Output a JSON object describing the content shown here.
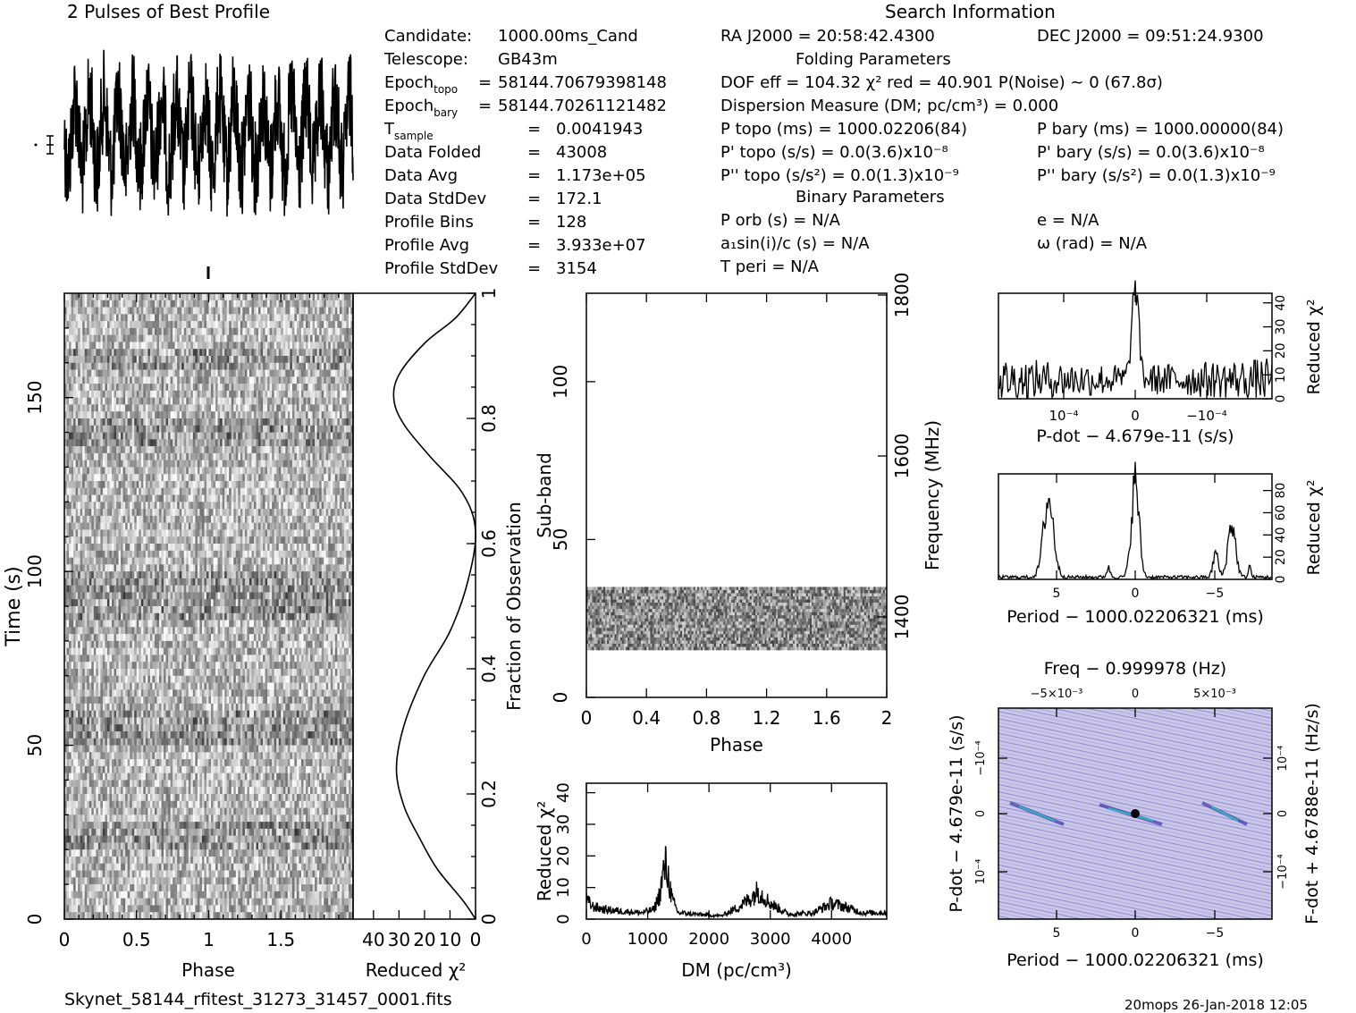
{
  "titles": {
    "profile_title": "2 Pulses of Best Profile",
    "search_info": "Search Information",
    "folding_params": "Folding Parameters",
    "binary_params": "Binary Parameters",
    "filename": "Skynet_58144_rfitest_31273_31457_0001.fits",
    "footer": "20mops 26-Jan-2018 12:05"
  },
  "info_left": [
    {
      "label": "Candidate:",
      "sep": "",
      "value": "1000.00ms_Cand"
    },
    {
      "label": "Telescope:",
      "sep": "",
      "value": "GB43m"
    },
    {
      "label": "Epoch",
      "sub": "topo",
      "sep": "=",
      "value": "58144.70679398148"
    },
    {
      "label": "Epoch",
      "sub": "bary",
      "sep": "=",
      "value": "58144.70261121482"
    },
    {
      "label": "T",
      "sub": "sample",
      "sep": "=",
      "value": "0.0041943"
    },
    {
      "label": "Data Folded",
      "sep": "=",
      "value": "43008"
    },
    {
      "label": "Data Avg",
      "sep": "=",
      "value": "1.173e+05"
    },
    {
      "label": "Data StdDev",
      "sep": "=",
      "value": "172.1"
    },
    {
      "label": "Profile Bins",
      "sep": "=",
      "value": "128"
    },
    {
      "label": "Profile Avg",
      "sep": "=",
      "value": "3.933e+07"
    },
    {
      "label": "Profile StdDev",
      "sep": "=",
      "value": "3154"
    }
  ],
  "info_mid": {
    "ra": "RA J2000 = 20:58:42.4300",
    "dof": "DOF eff = 104.32  χ² red = 40.901  P(Noise) ~ 0   (67.8σ)",
    "dm": "Dispersion Measure (DM; pc/cm³) = 0.000",
    "ptopo": "P topo (ms) =  1000.02206(84)",
    "pdtopo": "P' topo (s/s) = 0.0(3.6)x10⁻⁸",
    "pddtopo": "P'' topo (s/s²) = 0.0(1.3)x10⁻⁹",
    "porb": "P orb (s) = N/A",
    "asini": "a₁sin(i)/c (s) = N/A",
    "tperi": "T peri = N/A"
  },
  "info_right": {
    "dec": "DEC J2000 = 09:51:24.9300",
    "pbary": "P bary (ms) =  1000.00000(84)",
    "pdbary": "P' bary (s/s) = 0.0(3.6)x10⁻⁸",
    "pddbary": "P'' bary (s/s²) = 0.0(1.3)x10⁻⁹",
    "e": "e = N/A",
    "omega": "ω (rad) = N/A"
  },
  "chart_data": [
    {
      "id": "profile",
      "type": "line",
      "title": "2 Pulses of Best Profile",
      "description_series": "noisy pulse profile over 2 phase cycles",
      "ylim_labels": []
    },
    {
      "id": "time_phase",
      "type": "heatmap",
      "xlabel": "Phase",
      "ylabel": "Time (s)",
      "xticks": [
        "0",
        "0.5",
        "1",
        "1.5"
      ],
      "yticks": [
        "0",
        "50",
        "100",
        "150"
      ],
      "xlim": [
        0,
        2
      ],
      "ylim": [
        0,
        180
      ]
    },
    {
      "id": "time_chi2",
      "type": "line",
      "xlabel": "Reduced χ²",
      "ylabel": "Fraction of Observation",
      "xticks": [
        "40",
        "30",
        "20",
        "10",
        "0"
      ],
      "yticks": [
        "0",
        "0.2",
        "0.4",
        "0.6",
        "0.8",
        "1"
      ],
      "x": [
        0,
        5,
        15,
        22,
        28,
        31,
        28,
        20,
        10,
        3,
        0,
        5,
        18,
        28,
        32,
        30,
        20,
        8,
        0
      ],
      "y": [
        0,
        0.03,
        0.08,
        0.13,
        0.18,
        0.24,
        0.31,
        0.39,
        0.46,
        0.54,
        0.62,
        0.68,
        0.74,
        0.79,
        0.83,
        0.87,
        0.92,
        0.96,
        1.0
      ]
    },
    {
      "id": "subband_phase",
      "type": "heatmap",
      "xlabel": "Phase",
      "ylabel": "Sub-band",
      "y2label": "Frequency (MHz)",
      "xticks": [
        "0",
        "0.4",
        "0.8",
        "1.2",
        "1.6",
        "2"
      ],
      "yticks": [
        "0",
        "50",
        "100"
      ],
      "y2ticks": [
        "1400",
        "1600",
        "1800"
      ],
      "xlim": [
        0,
        2
      ],
      "ylim": [
        0,
        128
      ],
      "filled_band": [
        15,
        35
      ]
    },
    {
      "id": "dm_chi2",
      "type": "line",
      "xlabel": "DM (pc/cm³)",
      "ylabel": "Reduced χ²",
      "xticks": [
        "0",
        "1000",
        "2000",
        "3000",
        "4000"
      ],
      "yticks": [
        "0",
        "10",
        "20",
        "30",
        "40"
      ],
      "xlim": [
        0,
        4900
      ],
      "ylim": [
        0,
        43
      ],
      "x": [
        0,
        100,
        300,
        600,
        900,
        1100,
        1200,
        1250,
        1300,
        1350,
        1400,
        1500,
        1800,
        2200,
        2500,
        2700,
        2800,
        3000,
        3300,
        3700,
        4000,
        4200,
        4500,
        4900
      ],
      "y": [
        6,
        4,
        3,
        2.5,
        2,
        3,
        8,
        14,
        17,
        12,
        6,
        2,
        1.5,
        1,
        4,
        7,
        9,
        5,
        1.5,
        2,
        5,
        4,
        2,
        2
      ]
    },
    {
      "id": "pdot_chi2",
      "type": "line",
      "xlabel": "P-dot − 4.679e-11 (s/s)",
      "ylabel": "Reduced χ²",
      "xticks": [
        "10⁻⁴",
        "0",
        "−10⁻⁴"
      ],
      "yticks": [
        "0",
        "10",
        "20",
        "30",
        "40"
      ],
      "ylim": [
        0,
        44
      ]
    },
    {
      "id": "period_chi2",
      "type": "line",
      "xlabel": "Period − 1000.02206321 (ms)",
      "ylabel": "Reduced χ²",
      "xticks": [
        "5",
        "0",
        "−5"
      ],
      "yticks": [
        "0",
        "20",
        "40",
        "60",
        "80"
      ],
      "ylim": [
        0,
        95
      ]
    },
    {
      "id": "ppdot",
      "type": "heatmap",
      "title": "Freq − 0.999978 (Hz)",
      "xlabel": "Period − 1000.02206321 (ms)",
      "ylabel": "P-dot − 4.679e-11 (s/s)",
      "y2label": "F-dot + 4.6788e-11 (Hz/s)",
      "xticks": [
        "5",
        "0",
        "−5"
      ],
      "x2ticks": [
        "−5×10⁻³",
        "0",
        "5×10⁻³"
      ],
      "yticks": [
        "10⁻⁴",
        "0",
        "−10⁻⁴"
      ],
      "y2ticks": [
        "10⁻⁴",
        "0",
        "−10⁻⁴"
      ]
    }
  ]
}
